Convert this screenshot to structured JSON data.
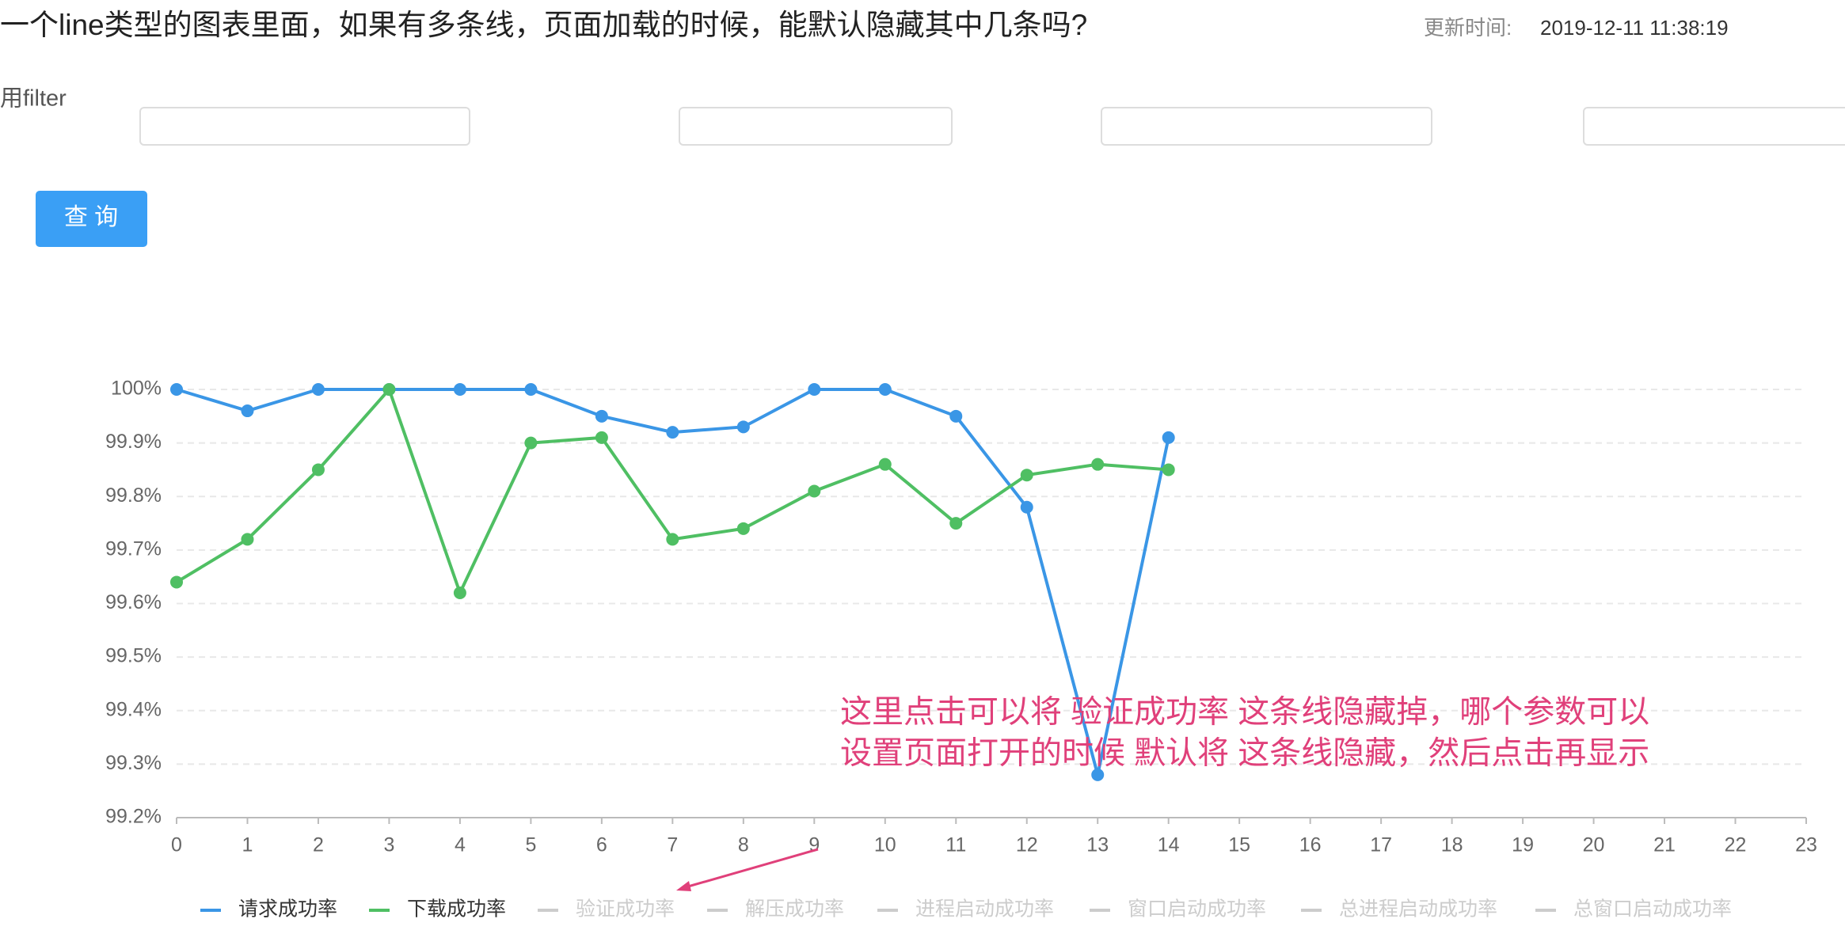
{
  "header": {
    "title": "一个line类型的图表里面，如果有多条线，页面加载的时候，能默认隐藏其中几条吗?",
    "updated_label": "更新时间:",
    "updated_time": "2019-12-11 11:38:19"
  },
  "filter_hint": "用filter",
  "button": "查 询",
  "annotation": [
    "这里点击可以将  验证成功率 这条线隐藏掉，哪个参数可以",
    "设置页面打开的时候 默认将 这条线隐藏，然后点击再显示"
  ],
  "chart_data": {
    "type": "line",
    "x": [
      0,
      1,
      2,
      3,
      4,
      5,
      6,
      7,
      8,
      9,
      10,
      11,
      12,
      13,
      14
    ],
    "xlim": [
      0,
      23
    ],
    "xticks": [
      0,
      1,
      2,
      3,
      4,
      5,
      6,
      7,
      8,
      9,
      10,
      11,
      12,
      13,
      14,
      15,
      16,
      17,
      18,
      19,
      20,
      21,
      22,
      23
    ],
    "ylim": [
      99.2,
      100
    ],
    "yticks": [
      {
        "value": 99.2,
        "label": "99.2%"
      },
      {
        "value": 99.3,
        "label": "99.3%"
      },
      {
        "value": 99.4,
        "label": "99.4%"
      },
      {
        "value": 99.5,
        "label": "99.5%"
      },
      {
        "value": 99.6,
        "label": "99.6%"
      },
      {
        "value": 99.7,
        "label": "99.7%"
      },
      {
        "value": 99.8,
        "label": "99.8%"
      },
      {
        "value": 99.9,
        "label": "99.9%"
      },
      {
        "value": 100,
        "label": "100%"
      }
    ],
    "grid": true,
    "legend": "bottom",
    "series": [
      {
        "name": "请求成功率",
        "color": "#3a96e6",
        "values": [
          100,
          99.96,
          100,
          100,
          100,
          100,
          99.95,
          99.92,
          99.93,
          100,
          100,
          99.95,
          99.78,
          99.28,
          99.91
        ]
      },
      {
        "name": "下载成功率",
        "color": "#4fbf63",
        "values": [
          99.64,
          99.72,
          99.85,
          100,
          99.62,
          99.9,
          99.91,
          99.72,
          99.74,
          99.81,
          99.86,
          99.75,
          99.84,
          99.86,
          99.85
        ]
      },
      {
        "name": "验证成功率",
        "color": "#cccccc",
        "hidden": true
      },
      {
        "name": "解压成功率",
        "color": "#cccccc",
        "hidden": true
      },
      {
        "name": "进程启动成功率",
        "color": "#cccccc",
        "hidden": true
      },
      {
        "name": "窗口启动成功率",
        "color": "#cccccc",
        "hidden": true
      },
      {
        "name": "总进程启动成功率",
        "color": "#cccccc",
        "hidden": true
      },
      {
        "name": "总窗口启动成功率",
        "color": "#cccccc",
        "hidden": true
      }
    ]
  }
}
